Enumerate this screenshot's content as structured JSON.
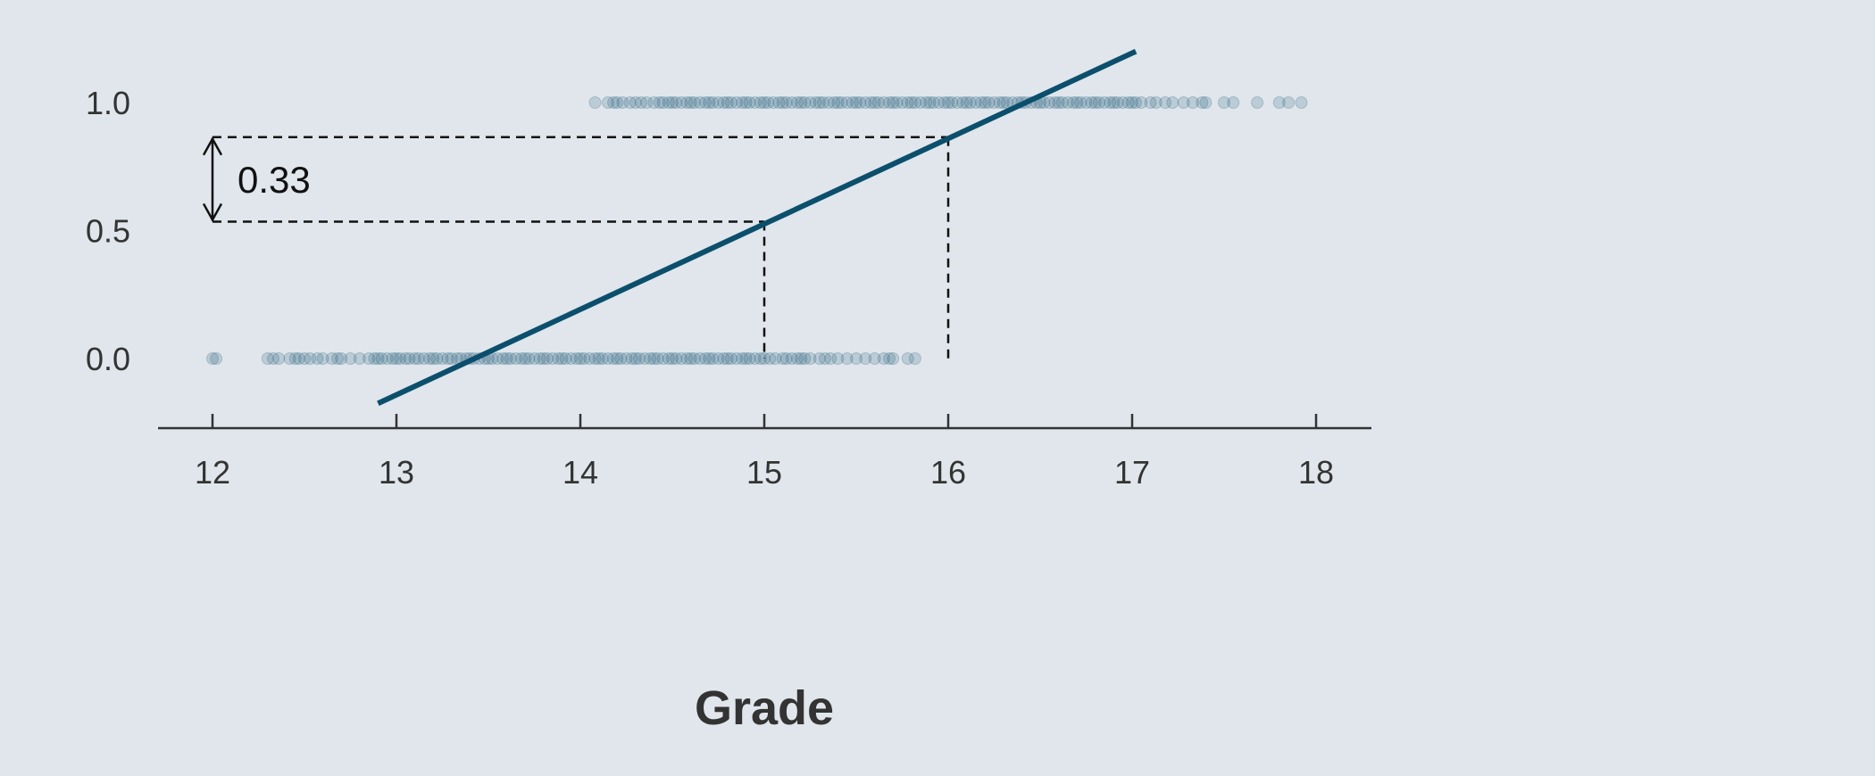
{
  "colors": {
    "background": "#e0e6ec",
    "series": "#0b4f6c",
    "annotation": "#111111",
    "axis": "#333333"
  },
  "chart_data": {
    "type": "scatter",
    "title": "",
    "xlabel": "Grade",
    "ylabel": "",
    "xlim": [
      11.7,
      18.3
    ],
    "ylim": [
      -0.27,
      1.23
    ],
    "xticks": [
      "12",
      "13",
      "14",
      "15",
      "16",
      "17",
      "18"
    ],
    "yticks": [
      "0.0",
      "0.5",
      "1.0"
    ],
    "grid": false,
    "series": [
      {
        "type": "scatter",
        "y": 0,
        "x": [
          12.0,
          12.02,
          12.3,
          12.33,
          12.36,
          12.42,
          12.45,
          12.47,
          12.5,
          12.53,
          12.57,
          12.6,
          12.65,
          12.68,
          12.7,
          12.75,
          12.8,
          12.85,
          12.88,
          12.9,
          12.92,
          12.95,
          12.98,
          13.0,
          13.02,
          13.05,
          13.07,
          13.1,
          13.12,
          13.15,
          13.18,
          13.2,
          13.22,
          13.25,
          13.28,
          13.3,
          13.33,
          13.35,
          13.38,
          13.4,
          13.42,
          13.45,
          13.48,
          13.5,
          13.52,
          13.55,
          13.58,
          13.6,
          13.62,
          13.65,
          13.68,
          13.7,
          13.72,
          13.75,
          13.78,
          13.8,
          13.82,
          13.85,
          13.88,
          13.9,
          13.92,
          13.95,
          13.98,
          14.0,
          14.02,
          14.05,
          14.08,
          14.1,
          14.12,
          14.15,
          14.18,
          14.2,
          14.22,
          14.25,
          14.28,
          14.3,
          14.32,
          14.35,
          14.38,
          14.4,
          14.42,
          14.45,
          14.48,
          14.5,
          14.52,
          14.55,
          14.58,
          14.6,
          14.62,
          14.65,
          14.68,
          14.7,
          14.72,
          14.75,
          14.78,
          14.8,
          14.82,
          14.85,
          14.88,
          14.9,
          14.92,
          14.95,
          14.98,
          15.0,
          15.03,
          15.06,
          15.1,
          15.12,
          15.15,
          15.18,
          15.2,
          15.22,
          15.25,
          15.3,
          15.33,
          15.36,
          15.4,
          15.45,
          15.5,
          15.55,
          15.6,
          15.65,
          15.68,
          15.7,
          15.78,
          15.82
        ]
      },
      {
        "type": "scatter",
        "y": 1,
        "x": [
          14.08,
          14.15,
          14.18,
          14.2,
          14.23,
          14.27,
          14.3,
          14.33,
          14.36,
          14.4,
          14.43,
          14.45,
          14.48,
          14.5,
          14.52,
          14.55,
          14.58,
          14.6,
          14.62,
          14.65,
          14.68,
          14.7,
          14.72,
          14.75,
          14.78,
          14.8,
          14.82,
          14.85,
          14.88,
          14.9,
          14.92,
          14.95,
          14.98,
          15.0,
          15.02,
          15.05,
          15.08,
          15.1,
          15.12,
          15.15,
          15.18,
          15.2,
          15.22,
          15.25,
          15.28,
          15.3,
          15.32,
          15.35,
          15.38,
          15.4,
          15.42,
          15.45,
          15.48,
          15.5,
          15.52,
          15.55,
          15.58,
          15.6,
          15.62,
          15.65,
          15.68,
          15.7,
          15.72,
          15.75,
          15.78,
          15.8,
          15.82,
          15.85,
          15.88,
          15.9,
          15.92,
          15.95,
          15.98,
          16.0,
          16.02,
          16.05,
          16.08,
          16.1,
          16.12,
          16.15,
          16.18,
          16.2,
          16.22,
          16.25,
          16.28,
          16.3,
          16.32,
          16.35,
          16.38,
          16.4,
          16.42,
          16.45,
          16.48,
          16.5,
          16.52,
          16.55,
          16.58,
          16.6,
          16.62,
          16.65,
          16.68,
          16.7,
          16.72,
          16.75,
          16.78,
          16.8,
          16.82,
          16.85,
          16.88,
          16.9,
          16.92,
          16.95,
          16.98,
          17.0,
          17.02,
          17.05,
          17.1,
          17.13,
          17.18,
          17.22,
          17.28,
          17.33,
          17.38,
          17.4,
          17.5,
          17.55,
          17.68,
          17.8,
          17.85,
          17.92
        ]
      },
      {
        "type": "line",
        "x": [
          12.9,
          17.02
        ],
        "y": [
          -0.175,
          1.2
        ]
      }
    ],
    "annotations": [
      {
        "text": "0.33",
        "y_from": 0.535,
        "y_to": 0.865,
        "reference_x": [
          15,
          16
        ]
      }
    ]
  }
}
